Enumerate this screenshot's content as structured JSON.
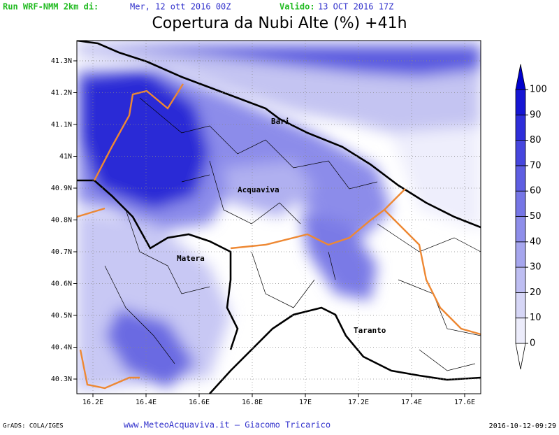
{
  "header": {
    "run_label": "Run WRF-NMM 2km di:",
    "run_date": "Mer, 12 ott 2016 00Z",
    "valid_label": "Valido:",
    "valid_date": "13 OCT 2016 17Z",
    "title": "Copertura da Nubi Alte (%) +41h"
  },
  "map": {
    "xticks": [
      "16.2E",
      "16.4E",
      "16.6E",
      "16.8E",
      "17E",
      "17.2E",
      "17.4E",
      "17.6E"
    ],
    "yticks": [
      "41.3N",
      "41.2N",
      "41.1N",
      "41N",
      "40.9N",
      "40.8N",
      "40.7N",
      "40.6N",
      "40.5N",
      "40.4N",
      "40.3N"
    ],
    "places": [
      "Bari",
      "Acquaviva",
      "Matera",
      "Taranto"
    ]
  },
  "colorbar": {
    "ticks": [
      0,
      10,
      20,
      30,
      40,
      50,
      60,
      70,
      80,
      90,
      100
    ],
    "colors": [
      "#ffffff",
      "#ececfb",
      "#d6d6f6",
      "#bebef2",
      "#a6a6ee",
      "#8e8eea",
      "#7676e6",
      "#5e5ee2",
      "#4646de",
      "#2e2eda",
      "#1616d4",
      "#0000cc"
    ]
  },
  "footer": {
    "left": "GrADS: COLA/IGES",
    "center": "www.MeteoAcquaviva.it  –  Giacomo Tricarico",
    "right": "2016-10-12-09:29"
  }
}
